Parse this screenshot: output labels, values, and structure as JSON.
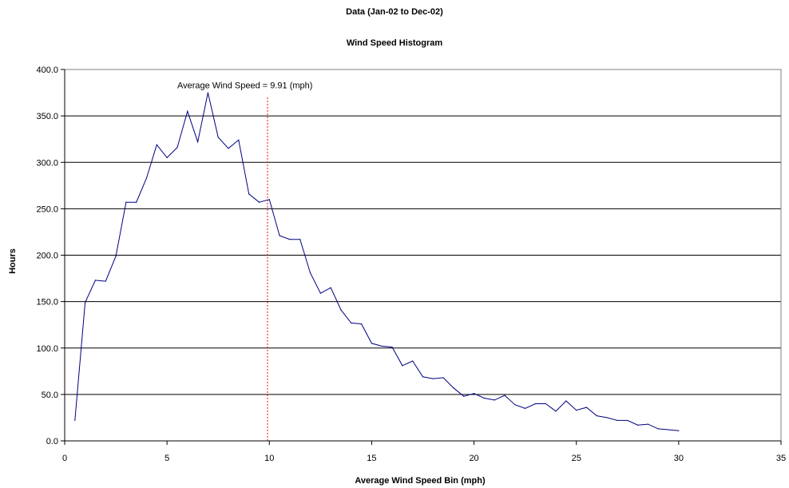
{
  "header": {
    "title": "Data (Jan-02 to Dec-02)",
    "subtitle": "Wind Speed Histogram"
  },
  "chart_data": {
    "type": "line",
    "title": "Data (Jan-02 to Dec-02)",
    "subtitle": "Wind Speed Histogram",
    "xlabel": "Average Wind Speed Bin (mph)",
    "ylabel": "Hours",
    "xlim": [
      0,
      35
    ],
    "ylim": [
      0,
      400
    ],
    "x_ticks": [
      "0",
      "5",
      "10",
      "15",
      "20",
      "25",
      "30",
      "35"
    ],
    "y_ticks": [
      "0.0",
      "50.0",
      "100.0",
      "150.0",
      "200.0",
      "250.0",
      "300.0",
      "350.0",
      "400.0"
    ],
    "grid": "horizontal",
    "series": [
      {
        "color": "#000080",
        "x": [
          0.5,
          1,
          1.5,
          2,
          2.5,
          3,
          3.5,
          4,
          4.5,
          5,
          5.5,
          6,
          6.5,
          7,
          7.5,
          8,
          8.5,
          9,
          9.5,
          10,
          10.5,
          11,
          11.5,
          12,
          12.5,
          13,
          13.5,
          14,
          14.5,
          15,
          15.5,
          16,
          16.5,
          17,
          17.5,
          18,
          18.5,
          19,
          19.5,
          20,
          20.5,
          21,
          21.5,
          22,
          22.5,
          23,
          23.5,
          24,
          24.5,
          25,
          25.5,
          26,
          26.5,
          27,
          27.5,
          28,
          28.5,
          29,
          29.5,
          30
        ],
        "values": [
          22,
          149,
          173,
          172,
          199,
          257,
          257,
          283,
          319,
          305,
          316,
          355,
          322,
          375,
          327,
          315,
          324,
          266,
          257,
          260,
          221,
          217,
          217,
          181,
          159,
          165,
          141,
          127,
          126,
          105,
          102,
          101,
          81,
          86,
          69,
          67,
          68,
          57,
          48,
          51,
          46,
          44,
          49,
          39,
          35,
          40,
          40,
          32,
          43,
          33,
          36,
          27,
          25,
          22,
          22,
          17,
          18,
          13,
          12,
          11
        ]
      }
    ],
    "annotations": [
      {
        "type": "vline",
        "x": 9.91,
        "color": "#ff0000",
        "text": "Average Wind Speed = 9.91 (mph)"
      }
    ]
  }
}
